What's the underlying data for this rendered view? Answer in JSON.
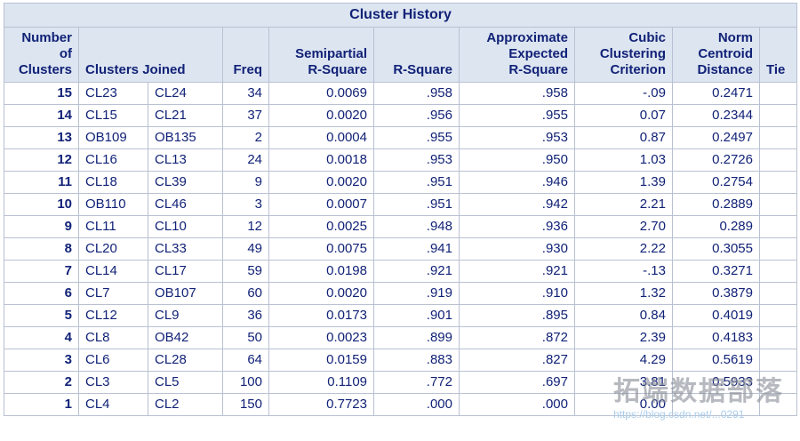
{
  "title": "Cluster History",
  "colors": {
    "header_bg": "#dde5f1",
    "text_navy": "#112277",
    "border": "#b9c1d2",
    "watermark_gray": "#8a8f98",
    "watermark_link_blue": "#a6cbe9"
  },
  "headers": {
    "number_of_clusters": "Number\nof\nClusters",
    "clusters_joined": "Clusters Joined",
    "freq": "Freq",
    "semipartial_rsquare": "Semipartial\nR-Square",
    "rsquare": "R-Square",
    "approx_expected_rsquare": "Approximate\nExpected\nR-Square",
    "cubic_clustering_criterion": "Cubic\nClustering\nCriterion",
    "norm_centroid_distance": "Norm\nCentroid\nDistance",
    "tie": "Tie"
  },
  "chart_data": {
    "type": "table",
    "title": "Cluster History",
    "columns": [
      "Number of Clusters",
      "Clusters Joined (1)",
      "Clusters Joined (2)",
      "Freq",
      "Semipartial R-Square",
      "R-Square",
      "Approximate Expected R-Square",
      "Cubic Clustering Criterion",
      "Norm Centroid Distance",
      "Tie"
    ],
    "rows": [
      [
        "15",
        "CL23",
        "CL24",
        "34",
        "0.0069",
        ".958",
        ".958",
        "-.09",
        "0.2471",
        ""
      ],
      [
        "14",
        "CL15",
        "CL21",
        "37",
        "0.0020",
        ".956",
        ".955",
        "0.07",
        "0.2344",
        ""
      ],
      [
        "13",
        "OB109",
        "OB135",
        "2",
        "0.0004",
        ".955",
        ".953",
        "0.87",
        "0.2497",
        ""
      ],
      [
        "12",
        "CL16",
        "CL13",
        "24",
        "0.0018",
        ".953",
        ".950",
        "1.03",
        "0.2726",
        ""
      ],
      [
        "11",
        "CL18",
        "CL39",
        "9",
        "0.0020",
        ".951",
        ".946",
        "1.39",
        "0.2754",
        ""
      ],
      [
        "10",
        "OB110",
        "CL46",
        "3",
        "0.0007",
        ".951",
        ".942",
        "2.21",
        "0.2889",
        ""
      ],
      [
        "9",
        "CL11",
        "CL10",
        "12",
        "0.0025",
        ".948",
        ".936",
        "2.70",
        "0.289",
        ""
      ],
      [
        "8",
        "CL20",
        "CL33",
        "49",
        "0.0075",
        ".941",
        ".930",
        "2.22",
        "0.3055",
        ""
      ],
      [
        "7",
        "CL14",
        "CL17",
        "59",
        "0.0198",
        ".921",
        ".921",
        "-.13",
        "0.3271",
        ""
      ],
      [
        "6",
        "CL7",
        "OB107",
        "60",
        "0.0020",
        ".919",
        ".910",
        "1.32",
        "0.3879",
        ""
      ],
      [
        "5",
        "CL12",
        "CL9",
        "36",
        "0.0173",
        ".901",
        ".895",
        "0.84",
        "0.4019",
        ""
      ],
      [
        "4",
        "CL8",
        "OB42",
        "50",
        "0.0023",
        ".899",
        ".872",
        "2.39",
        "0.4183",
        ""
      ],
      [
        "3",
        "CL6",
        "CL28",
        "64",
        "0.0159",
        ".883",
        ".827",
        "4.29",
        "0.5619",
        ""
      ],
      [
        "2",
        "CL3",
        "CL5",
        "100",
        "0.1109",
        ".772",
        ".697",
        "3.81",
        "0.5933",
        ""
      ],
      [
        "1",
        "CL4",
        "CL2",
        "150",
        "0.7723",
        ".000",
        ".000",
        "0.00",
        "",
        ""
      ]
    ]
  },
  "watermark": {
    "text": "拓端数据部落",
    "link": "https://blog.csdn.net/...0291"
  }
}
